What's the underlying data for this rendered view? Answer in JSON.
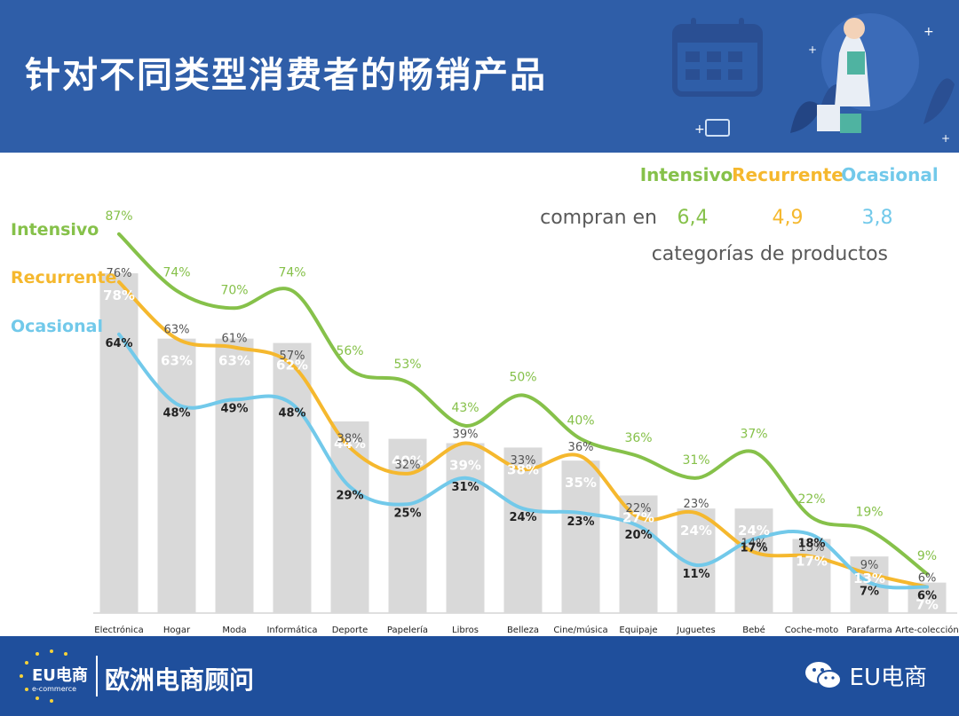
{
  "header": {
    "title": "针对不同类型消费者的畅销产品"
  },
  "legend_box": {
    "heads": [
      "Intensivo",
      "Recurrente",
      "Ocasional"
    ],
    "compran_label": "compran en",
    "values": [
      "6,4",
      "4,9",
      "3,8"
    ],
    "subtitle": "categorías de productos"
  },
  "side_legend": [
    "Intensivo",
    "Recurrente",
    "Ocasional"
  ],
  "colors": {
    "intensivo": "#86c14a",
    "recurrente": "#f5b82e",
    "ocasional": "#72c9ea",
    "bar": "#d9d9d9",
    "header": "#2f5ea8",
    "footer": "#1f4f9c"
  },
  "chart_data": {
    "type": "bar",
    "categories": [
      "Electrónica",
      "Hogar",
      "Moda",
      "Informática",
      "Deporte",
      "Papelería",
      "Libros",
      "Belleza",
      "Cine/música",
      "Equipaje",
      "Juguetes",
      "Bebé",
      "Coche-moto",
      "Parafarma",
      "Arte-colección"
    ],
    "bars": {
      "values": [
        78,
        63,
        63,
        62,
        44,
        40,
        39,
        38,
        35,
        27,
        24,
        24,
        17,
        13,
        7
      ],
      "labels": [
        "78%",
        "63%",
        "63%",
        "62%",
        "44%",
        "40%",
        "39%",
        "38%",
        "35%",
        "27%",
        "24%",
        "24%",
        "17%",
        "13%",
        "7%"
      ]
    },
    "series": [
      {
        "name": "Intensivo",
        "values": [
          87,
          74,
          70,
          74,
          56,
          53,
          43,
          50,
          40,
          36,
          31,
          37,
          22,
          19,
          9
        ],
        "labels": [
          "87%",
          "74%",
          "70%",
          "74%",
          "56%",
          "53%",
          "43%",
          "50%",
          "40%",
          "36%",
          "31%",
          "37%",
          "22%",
          "19%",
          "9%"
        ]
      },
      {
        "name": "Recurrente",
        "values": [
          76,
          63,
          61,
          57,
          38,
          32,
          39,
          33,
          36,
          22,
          23,
          14,
          13,
          9,
          6
        ],
        "labels": [
          "76%",
          "63%",
          "61%",
          "57%",
          "38%",
          "32%",
          "39%",
          "33%",
          "36%",
          "22%",
          "23%",
          "14%",
          "13%",
          "9%",
          "6%"
        ]
      },
      {
        "name": "Ocasional",
        "values": [
          64,
          48,
          49,
          48,
          29,
          25,
          31,
          24,
          23,
          20,
          11,
          17,
          18,
          7,
          6
        ],
        "labels": [
          "64%",
          "48%",
          "49%",
          "48%",
          "29%",
          "25%",
          "31%",
          "24%",
          "23%",
          "20%",
          "11%",
          "17%",
          "18%",
          "7%",
          "6%"
        ]
      }
    ],
    "ylim": [
      0,
      100
    ],
    "grid": false
  },
  "footer": {
    "logo_text": "EU电商",
    "logo_sub": "e-commerce",
    "brand": "欧洲电商顾问",
    "wechat_label": "EU电商"
  }
}
